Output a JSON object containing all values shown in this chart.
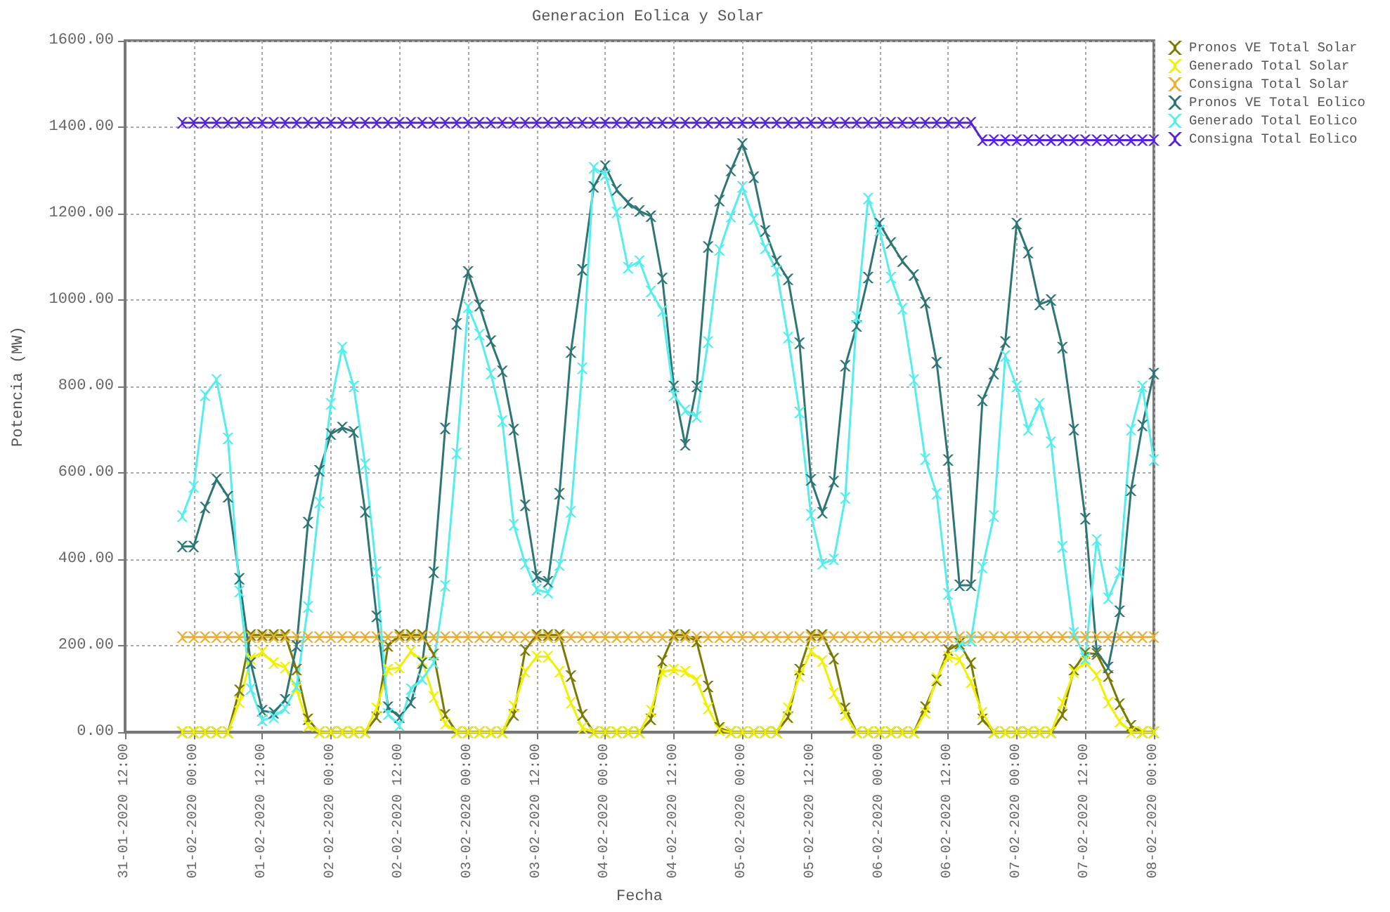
{
  "chart_data": {
    "type": "line",
    "title": "Generacion Eolica y Solar",
    "xlabel": "Fecha",
    "ylabel": "Potencia (MW)",
    "x": [
      "2020-01-31T22:00",
      "2020-02-01T00:00",
      "2020-02-01T02:00",
      "2020-02-01T04:00",
      "2020-02-01T06:00",
      "2020-02-01T08:00",
      "2020-02-01T10:00",
      "2020-02-01T12:00",
      "2020-02-01T14:00",
      "2020-02-01T16:00",
      "2020-02-01T18:00",
      "2020-02-01T20:00",
      "2020-02-01T22:00",
      "2020-02-02T00:00",
      "2020-02-02T02:00",
      "2020-02-02T04:00",
      "2020-02-02T06:00",
      "2020-02-02T08:00",
      "2020-02-02T10:00",
      "2020-02-02T12:00",
      "2020-02-02T14:00",
      "2020-02-02T16:00",
      "2020-02-02T18:00",
      "2020-02-02T20:00",
      "2020-02-02T22:00",
      "2020-02-03T00:00",
      "2020-02-03T02:00",
      "2020-02-03T04:00",
      "2020-02-03T06:00",
      "2020-02-03T08:00",
      "2020-02-03T10:00",
      "2020-02-03T12:00",
      "2020-02-03T14:00",
      "2020-02-03T16:00",
      "2020-02-03T18:00",
      "2020-02-03T20:00",
      "2020-02-03T22:00",
      "2020-02-04T00:00",
      "2020-02-04T02:00",
      "2020-02-04T04:00",
      "2020-02-04T06:00",
      "2020-02-04T08:00",
      "2020-02-04T10:00",
      "2020-02-04T12:00",
      "2020-02-04T14:00",
      "2020-02-04T16:00",
      "2020-02-04T18:00",
      "2020-02-04T20:00",
      "2020-02-04T22:00",
      "2020-02-05T00:00",
      "2020-02-05T02:00",
      "2020-02-05T04:00",
      "2020-02-05T06:00",
      "2020-02-05T08:00",
      "2020-02-05T10:00",
      "2020-02-05T12:00",
      "2020-02-05T14:00",
      "2020-02-05T16:00",
      "2020-02-05T18:00",
      "2020-02-05T20:00",
      "2020-02-05T22:00",
      "2020-02-06T00:00",
      "2020-02-06T02:00",
      "2020-02-06T04:00",
      "2020-02-06T06:00",
      "2020-02-06T08:00",
      "2020-02-06T10:00",
      "2020-02-06T12:00",
      "2020-02-06T14:00",
      "2020-02-06T16:00",
      "2020-02-06T18:00",
      "2020-02-06T20:00",
      "2020-02-06T22:00",
      "2020-02-07T00:00",
      "2020-02-07T02:00",
      "2020-02-07T04:00",
      "2020-02-07T06:00",
      "2020-02-07T08:00",
      "2020-02-07T10:00",
      "2020-02-07T12:00",
      "2020-02-07T14:00",
      "2020-02-07T16:00",
      "2020-02-07T18:00",
      "2020-02-07T20:00",
      "2020-02-07T22:00",
      "2020-02-08T00:00"
    ],
    "series": [
      {
        "name": "Pronos VE Total Solar",
        "color": "#7a7a00",
        "values": [
          0,
          0,
          0,
          0,
          0,
          97,
          225,
          225,
          225,
          225,
          145,
          30,
          0,
          0,
          0,
          0,
          0,
          35,
          200,
          225,
          225,
          225,
          180,
          40,
          0,
          0,
          0,
          0,
          0,
          40,
          190,
          225,
          225,
          225,
          130,
          40,
          0,
          0,
          0,
          0,
          0,
          30,
          165,
          225,
          225,
          210,
          106,
          10,
          0,
          0,
          0,
          0,
          0,
          35,
          145,
          225,
          225,
          170,
          55,
          0,
          0,
          0,
          0,
          0,
          0,
          58,
          120,
          190,
          205,
          160,
          30,
          0,
          0,
          0,
          0,
          0,
          0,
          40,
          145,
          183,
          181,
          130,
          65,
          15,
          0,
          0
        ]
      },
      {
        "name": "Generado Total Solar",
        "color": "#f0f000",
        "values": [
          0,
          0,
          0,
          0,
          0,
          70,
          170,
          185,
          160,
          150,
          100,
          15,
          0,
          0,
          0,
          0,
          0,
          55,
          145,
          150,
          187,
          165,
          81,
          20,
          0,
          0,
          0,
          0,
          0,
          60,
          140,
          175,
          175,
          140,
          68,
          10,
          0,
          0,
          0,
          0,
          0,
          50,
          140,
          145,
          140,
          120,
          55,
          5,
          0,
          0,
          0,
          0,
          0,
          55,
          130,
          187,
          165,
          90,
          40,
          0,
          0,
          0,
          0,
          0,
          0,
          45,
          125,
          175,
          168,
          116,
          45,
          0,
          0,
          0,
          0,
          0,
          0,
          68,
          139,
          163,
          132,
          68,
          25,
          0,
          0,
          0
        ]
      },
      {
        "name": "Consigna Total Solar",
        "color": "#e8b030",
        "values": [
          220,
          220,
          220,
          220,
          220,
          220,
          220,
          220,
          220,
          220,
          220,
          220,
          220,
          220,
          220,
          220,
          220,
          220,
          220,
          220,
          220,
          220,
          220,
          220,
          220,
          220,
          220,
          220,
          220,
          220,
          220,
          220,
          220,
          220,
          220,
          220,
          220,
          220,
          220,
          220,
          220,
          220,
          220,
          220,
          220,
          220,
          220,
          220,
          220,
          220,
          220,
          220,
          220,
          220,
          220,
          220,
          220,
          220,
          220,
          220,
          220,
          220,
          220,
          220,
          220,
          220,
          220,
          220,
          220,
          220,
          220,
          220,
          220,
          220,
          220,
          220,
          220,
          220,
          220,
          220,
          220,
          220,
          220,
          220,
          220,
          220
        ]
      },
      {
        "name": "Pronos VE Total Eolico",
        "color": "#2e7676",
        "values": [
          430,
          430,
          520,
          585,
          545,
          355,
          160,
          50,
          45,
          75,
          200,
          485,
          605,
          690,
          705,
          695,
          510,
          268,
          58,
          35,
          68,
          160,
          370,
          703,
          945,
          1065,
          987,
          905,
          835,
          700,
          525,
          360,
          348,
          552,
          880,
          1070,
          1262,
          1310,
          1255,
          1225,
          1206,
          1194,
          1050,
          800,
          665,
          800,
          1123,
          1230,
          1300,
          1361,
          1284,
          1160,
          1090,
          1048,
          900,
          584,
          508,
          580,
          848,
          940,
          1052,
          1177,
          1132,
          1090,
          1058,
          994,
          855,
          630,
          340,
          340,
          768,
          830,
          903,
          1177,
          1110,
          990,
          1000,
          890,
          700,
          494,
          187,
          150,
          280,
          560,
          710,
          830
        ]
      },
      {
        "name": "Generado Total Eolico",
        "color": "#55eeee",
        "values": [
          500,
          568,
          780,
          815,
          680,
          326,
          100,
          28,
          35,
          55,
          106,
          290,
          532,
          760,
          890,
          800,
          620,
          370,
          42,
          16,
          100,
          123,
          161,
          339,
          645,
          984,
          920,
          830,
          720,
          480,
          390,
          330,
          323,
          387,
          510,
          842,
          1306,
          1290,
          1203,
          1075,
          1090,
          1020,
          975,
          780,
          745,
          730,
          903,
          1116,
          1193,
          1262,
          1187,
          1120,
          1068,
          913,
          740,
          503,
          390,
          400,
          542,
          961,
          1235,
          1161,
          1052,
          980,
          815,
          632,
          552,
          320,
          200,
          213,
          381,
          500,
          871,
          800,
          700,
          760,
          671,
          429,
          230,
          170,
          445,
          310,
          370,
          700,
          800,
          630
        ]
      },
      {
        "name": "Consigna Total Eolico",
        "color": "#5522dd",
        "values": [
          1410,
          1410,
          1410,
          1410,
          1410,
          1410,
          1410,
          1410,
          1410,
          1410,
          1410,
          1410,
          1410,
          1410,
          1410,
          1410,
          1410,
          1410,
          1410,
          1410,
          1410,
          1410,
          1410,
          1410,
          1410,
          1410,
          1410,
          1410,
          1410,
          1410,
          1410,
          1410,
          1410,
          1410,
          1410,
          1410,
          1410,
          1410,
          1410,
          1410,
          1410,
          1410,
          1410,
          1410,
          1410,
          1410,
          1410,
          1410,
          1410,
          1410,
          1410,
          1410,
          1410,
          1410,
          1410,
          1410,
          1410,
          1410,
          1410,
          1410,
          1410,
          1410,
          1410,
          1410,
          1410,
          1410,
          1410,
          1410,
          1410,
          1410,
          1370,
          1370,
          1370,
          1370,
          1370,
          1370,
          1370,
          1370,
          1370,
          1370,
          1370,
          1370,
          1370,
          1370,
          1370,
          1370
        ]
      }
    ],
    "xlim": [
      "2020-01-31T12:00",
      "2020-02-08T00:00"
    ],
    "xticks": [
      {
        "value": "2020-01-31T12:00",
        "label": "31-01-2020 12:00"
      },
      {
        "value": "2020-02-01T00:00",
        "label": "01-02-2020 00:00"
      },
      {
        "value": "2020-02-01T12:00",
        "label": "01-02-2020 12:00"
      },
      {
        "value": "2020-02-02T00:00",
        "label": "02-02-2020 00:00"
      },
      {
        "value": "2020-02-02T12:00",
        "label": "02-02-2020 12:00"
      },
      {
        "value": "2020-02-03T00:00",
        "label": "03-02-2020 00:00"
      },
      {
        "value": "2020-02-03T12:00",
        "label": "03-02-2020 12:00"
      },
      {
        "value": "2020-02-04T00:00",
        "label": "04-02-2020 00:00"
      },
      {
        "value": "2020-02-04T12:00",
        "label": "04-02-2020 12:00"
      },
      {
        "value": "2020-02-05T00:00",
        "label": "05-02-2020 00:00"
      },
      {
        "value": "2020-02-05T12:00",
        "label": "05-02-2020 12:00"
      },
      {
        "value": "2020-02-06T00:00",
        "label": "06-02-2020 00:00"
      },
      {
        "value": "2020-02-06T12:00",
        "label": "06-02-2020 12:00"
      },
      {
        "value": "2020-02-07T00:00",
        "label": "07-02-2020 00:00"
      },
      {
        "value": "2020-02-07T12:00",
        "label": "07-02-2020 12:00"
      },
      {
        "value": "2020-02-08T00:00",
        "label": "08-02-2020 00:00"
      }
    ],
    "ylim": [
      0,
      1600
    ],
    "yticks": [
      {
        "value": 0,
        "label": "0.00"
      },
      {
        "value": 200,
        "label": "200.00"
      },
      {
        "value": 400,
        "label": "400.00"
      },
      {
        "value": 600,
        "label": "600.00"
      },
      {
        "value": 800,
        "label": "800.00"
      },
      {
        "value": 1000,
        "label": "1000.00"
      },
      {
        "value": 1200,
        "label": "1200.00"
      },
      {
        "value": 1400,
        "label": "1400.00"
      },
      {
        "value": 1600,
        "label": "1600.00"
      }
    ],
    "grid": true,
    "legend": "top right",
    "marker": "cross",
    "line_style": "solid"
  }
}
